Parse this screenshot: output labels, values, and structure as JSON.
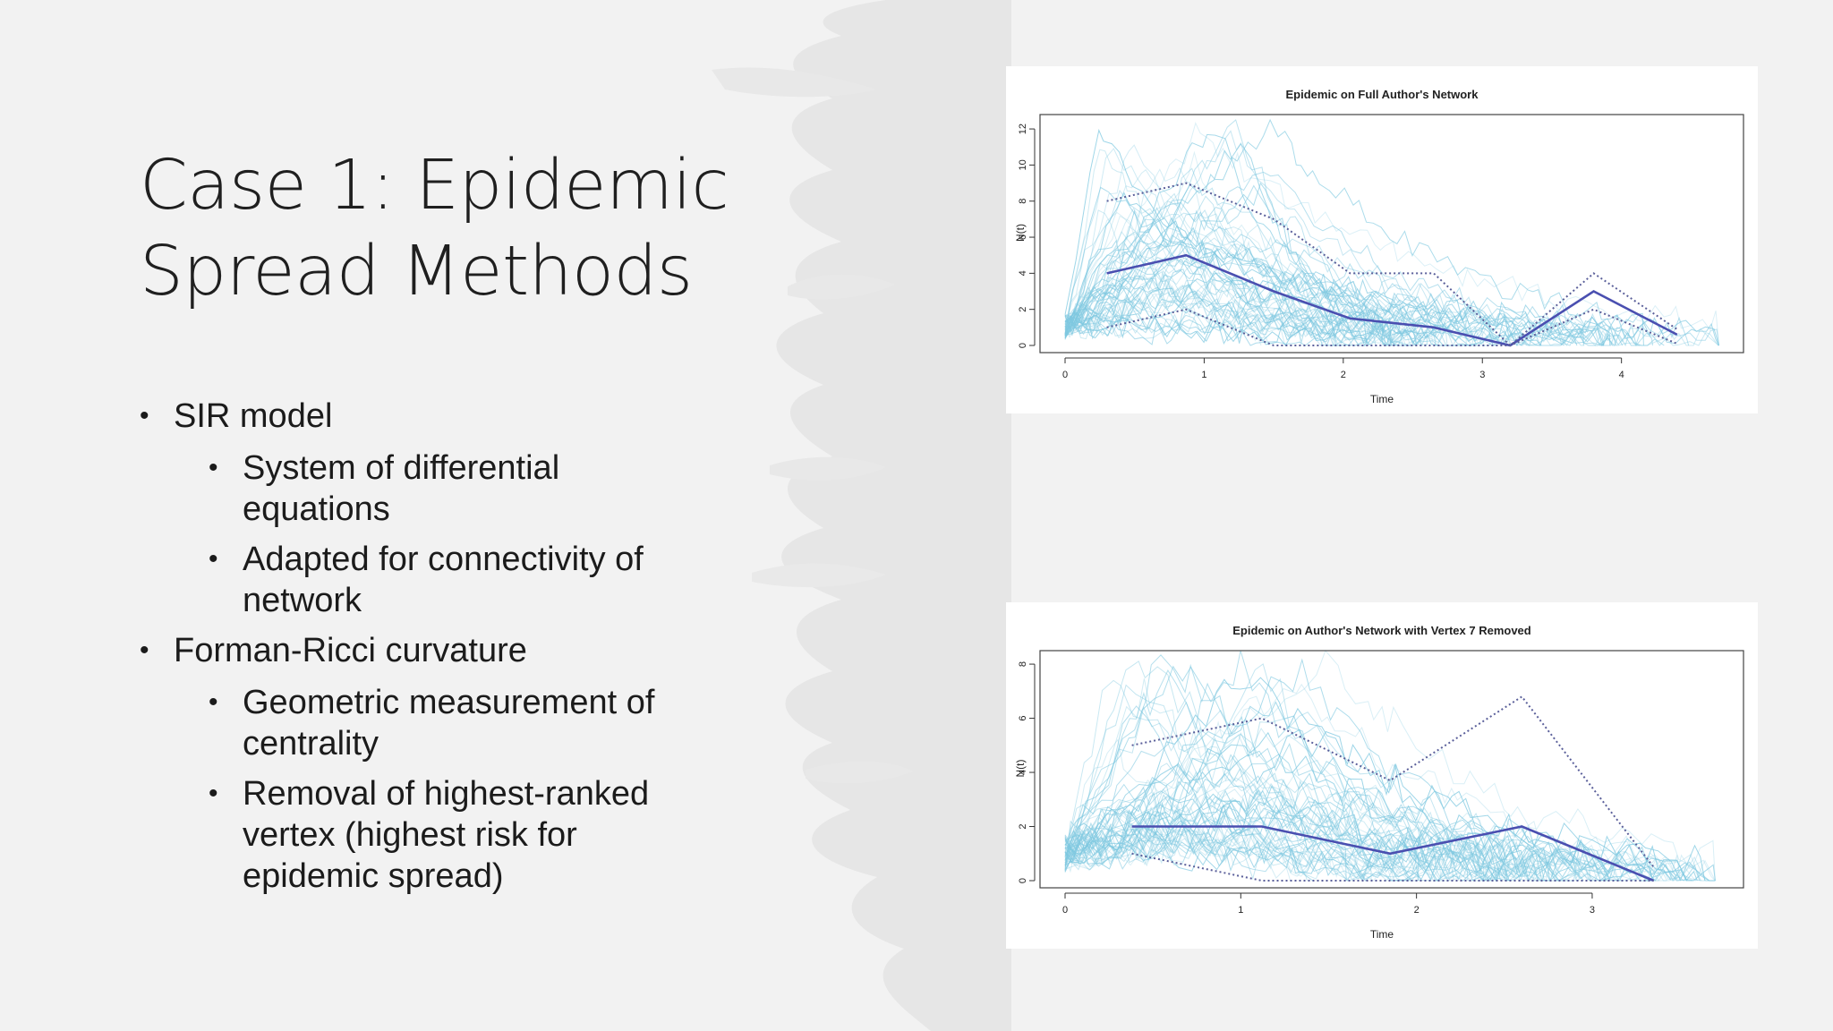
{
  "slide": {
    "title": "Case 1: Epidemic Spread Methods",
    "bullets": [
      {
        "text": "SIR model",
        "children": [
          "System of differential equations",
          "Adapted for connectivity of network"
        ]
      },
      {
        "text": "Forman-Ricci curvature",
        "children": [
          "Geometric measurement of centrality",
          "Removal of highest-ranked vertex (highest risk for epidemic spread)"
        ]
      }
    ]
  },
  "colors": {
    "background": "#f2f2f2",
    "decor": "#e4e4e4",
    "trajectories": "#7ec8e0",
    "mean_line": "#4a4fb0",
    "bound_line": "#5a5f9a"
  },
  "chart_data": [
    {
      "type": "line",
      "title": "Epidemic on Full Author's Network",
      "xlabel": "Time",
      "ylabel": "N(t)",
      "xlim": [
        0,
        4.8
      ],
      "ylim": [
        0,
        12.5
      ],
      "xticks": [
        0,
        1,
        2,
        3,
        4
      ],
      "yticks": [
        0,
        2,
        4,
        6,
        8,
        10,
        12
      ],
      "grid": false,
      "legend": "none",
      "simulated_trajectory_count": 60,
      "series": [
        {
          "values": [
            [
              0.3,
              4
            ],
            [
              0.87,
              5
            ],
            [
              1.5,
              3
            ],
            [
              2.05,
              1.5
            ],
            [
              2.65,
              1
            ],
            [
              3.2,
              0
            ],
            [
              3.8,
              3
            ],
            [
              4.4,
              0.6
            ]
          ]
        },
        {
          "values": [
            [
              0.3,
              8
            ],
            [
              0.87,
              9
            ],
            [
              1.5,
              7
            ],
            [
              2.05,
              4
            ],
            [
              2.65,
              4
            ],
            [
              3.2,
              0
            ],
            [
              3.8,
              4
            ],
            [
              4.4,
              0.9
            ]
          ]
        },
        {
          "values": [
            [
              0.3,
              1
            ],
            [
              0.87,
              2
            ],
            [
              1.5,
              0
            ],
            [
              2.05,
              0
            ],
            [
              2.65,
              0
            ],
            [
              3.2,
              0
            ],
            [
              3.8,
              2
            ],
            [
              4.4,
              0.1
            ]
          ]
        }
      ]
    },
    {
      "type": "line",
      "title": "Epidemic on Author's Network with Vertex 7 Removed",
      "xlabel": "Time",
      "ylabel": "N(t)",
      "xlim": [
        0,
        3.8
      ],
      "ylim": [
        0,
        8.3
      ],
      "xticks": [
        0,
        1,
        2,
        3
      ],
      "yticks": [
        0,
        2,
        4,
        6,
        8
      ],
      "grid": false,
      "legend": "none",
      "simulated_trajectory_count": 60,
      "series": [
        {
          "values": [
            [
              0.38,
              2
            ],
            [
              1.12,
              2
            ],
            [
              1.85,
              1
            ],
            [
              2.6,
              2
            ],
            [
              3.35,
              0
            ]
          ]
        },
        {
          "values": [
            [
              0.38,
              5
            ],
            [
              1.12,
              6
            ],
            [
              1.85,
              3.7
            ],
            [
              2.6,
              6.8
            ],
            [
              3.35,
              0.5
            ]
          ]
        },
        {
          "values": [
            [
              0.38,
              1
            ],
            [
              1.12,
              0
            ],
            [
              1.85,
              0
            ],
            [
              2.6,
              0
            ],
            [
              3.35,
              0
            ]
          ]
        }
      ]
    }
  ]
}
